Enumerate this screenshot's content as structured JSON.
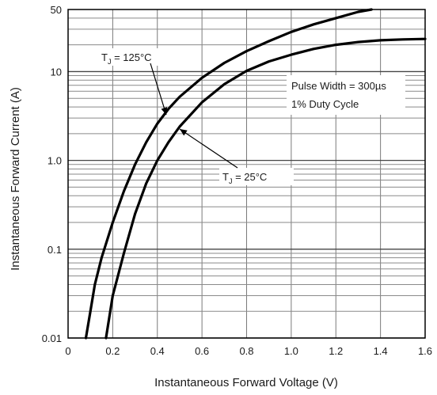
{
  "chart_data": {
    "type": "line",
    "xlabel": "Instantaneous Forward Voltage (V)",
    "ylabel": "Instantaneous Forward Current (A)",
    "xlim": [
      0,
      1.6
    ],
    "ylim": [
      0.01,
      50
    ],
    "yscale": "log",
    "grid": true,
    "x_ticks": [
      0,
      0.2,
      0.4,
      0.6,
      0.8,
      1.0,
      1.2,
      1.4,
      1.6
    ],
    "x_tick_labels": [
      "0",
      "0.2",
      "0.4",
      "0.6",
      "0.8",
      "1.0",
      "1.2",
      "1.4",
      "1.6"
    ],
    "y_ticks": [
      0.01,
      0.1,
      1.0,
      10,
      50
    ],
    "y_tick_labels": [
      "0.01",
      "0.1",
      "1.0",
      "10",
      "50"
    ],
    "series": [
      {
        "name": "T_J = 125°C",
        "color": "#000000",
        "x": [
          0.08,
          0.1,
          0.12,
          0.15,
          0.2,
          0.25,
          0.3,
          0.35,
          0.4,
          0.45,
          0.5,
          0.6,
          0.7,
          0.8,
          0.9,
          1.0,
          1.1,
          1.2,
          1.3,
          1.36
        ],
        "y": [
          0.01,
          0.02,
          0.04,
          0.08,
          0.2,
          0.45,
          0.9,
          1.6,
          2.6,
          3.8,
          5.2,
          8.5,
          12.5,
          17,
          22,
          28,
          34,
          40,
          47,
          50
        ]
      },
      {
        "name": "T_J = 25°C",
        "color": "#000000",
        "x": [
          0.17,
          0.2,
          0.25,
          0.3,
          0.35,
          0.4,
          0.45,
          0.5,
          0.6,
          0.7,
          0.8,
          0.9,
          1.0,
          1.1,
          1.2,
          1.3,
          1.4,
          1.5,
          1.6
        ],
        "y": [
          0.01,
          0.03,
          0.09,
          0.25,
          0.55,
          1.0,
          1.6,
          2.4,
          4.5,
          7.2,
          10.2,
          13,
          15.5,
          18,
          20,
          21.5,
          22.5,
          23,
          23.3
        ]
      }
    ],
    "annotations": [
      {
        "text_main": "T",
        "text_sub": "J",
        "text_rest": " = 125°C",
        "series": 0
      },
      {
        "text_main": "T",
        "text_sub": "J",
        "text_rest": " = 25°C",
        "series": 1
      },
      {
        "line1": "Pulse Width = 300µs",
        "line2": "1% Duty Cycle"
      }
    ]
  }
}
